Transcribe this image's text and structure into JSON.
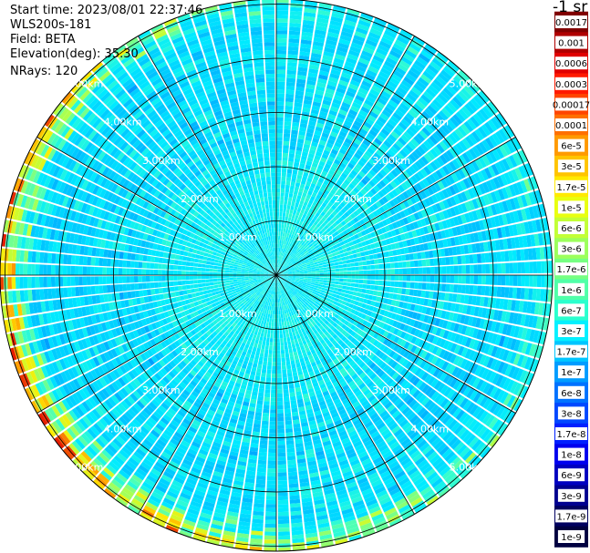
{
  "header": {
    "start_time": "Start time: 2023/08/01 22:37:46",
    "instrument": "WLS200s-181",
    "field": "Field: BETA",
    "elevation": "Elevation(deg): 35.30",
    "nrays": "NRays: 120"
  },
  "colorbar": {
    "unit": "-1 sr",
    "labels": [
      "0.0017",
      "0.001",
      "0.0006",
      "0.0003",
      "0.00017",
      "0.0001",
      "6e-5",
      "3e-5",
      "1.7e-5",
      "1e-5",
      "6e-6",
      "3e-6",
      "1.7e-6",
      "1e-6",
      "6e-7",
      "3e-7",
      "1.7e-7",
      "1e-7",
      "6e-8",
      "3e-8",
      "1.7e-8",
      "1e-8",
      "6e-9",
      "3e-9",
      "1.7e-9",
      "1e-9"
    ],
    "colors": [
      "#800000",
      "#b00000",
      "#e00000",
      "#ff1a00",
      "#ff4500",
      "#ff7000",
      "#ff9a00",
      "#ffc400",
      "#ffea00",
      "#e8ff10",
      "#c2ff36",
      "#9cff5c",
      "#76ff82",
      "#50ffa8",
      "#2affce",
      "#05f0ff",
      "#00c6ff",
      "#009cff",
      "#0072ff",
      "#0048ff",
      "#0020ff",
      "#0000ee",
      "#0000c0",
      "#000090",
      "#000060",
      "#000040"
    ]
  },
  "chart_data": {
    "type": "heatmap",
    "projection": "polar",
    "n_rays": 120,
    "range_rings_km": [
      1,
      2,
      3,
      4,
      5
    ],
    "range_ring_labels": [
      "1.00km",
      "2.00km",
      "3.00km",
      "4.00km",
      "5.00km"
    ],
    "max_range_km": 5.1,
    "azimuth_grid_deg": [
      0,
      30,
      60,
      90,
      120,
      150,
      180,
      210,
      240,
      270,
      300,
      330
    ],
    "field": "BETA",
    "elevation_deg": 35.3
  }
}
